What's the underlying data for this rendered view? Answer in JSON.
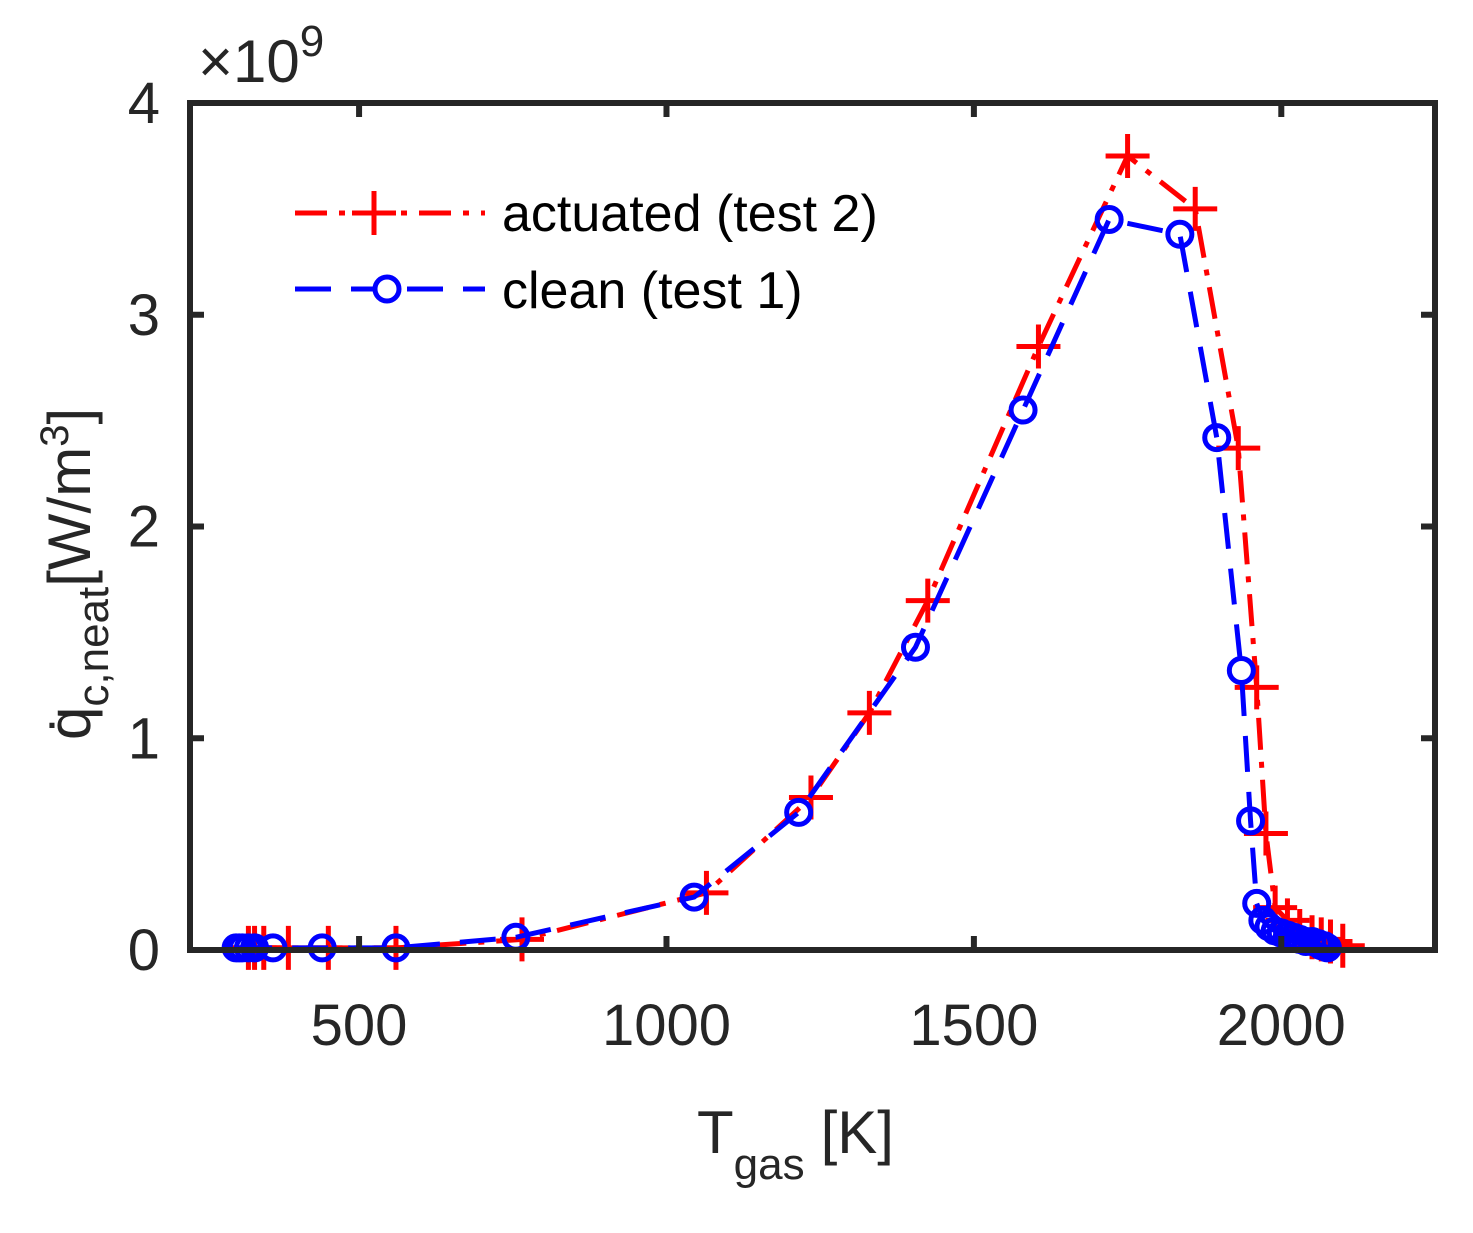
{
  "chart_data": {
    "type": "line",
    "title": "",
    "xlabel": "T",
    "xlabel_sub": "gas",
    "xlabel_unit": "[K]",
    "ylabel": "q̇",
    "ylabel_sub": "c,neat",
    "ylabel_unit": "[W/m",
    "ylabel_unit_sup": "3",
    "ylabel_unit_close": "]",
    "y_exponent": "×10",
    "y_exponent_power": "9",
    "xlim": [
      225,
      2250
    ],
    "ylim": [
      0,
      4
    ],
    "xticks": [
      500,
      1000,
      1500,
      2000
    ],
    "yticks": [
      0,
      1,
      2,
      3,
      4
    ],
    "grid": false,
    "legend_position": "top-left",
    "series": [
      {
        "name": "actuated (test 2)",
        "color": "#ff0000",
        "marker": "plus",
        "dash": "dashdot",
        "x": [
          320,
          330,
          345,
          385,
          450,
          560,
          765,
          1065,
          1235,
          1330,
          1425,
          1605,
          1750,
          1860,
          1930,
          1960,
          1975,
          1990,
          2010,
          2030,
          2050,
          2065,
          2080,
          2100
        ],
        "y": [
          0.01,
          0.01,
          0.01,
          0.01,
          0.01,
          0.01,
          0.05,
          0.27,
          0.72,
          1.12,
          1.65,
          2.85,
          3.75,
          3.5,
          2.37,
          1.24,
          0.55,
          0.2,
          0.14,
          0.09,
          0.06,
          0.05,
          0.04,
          0.02
        ]
      },
      {
        "name": "clean (test 1)",
        "color": "#0000ff",
        "marker": "circle",
        "dash": "dashed",
        "x": [
          300,
          305,
          310,
          320,
          330,
          360,
          440,
          560,
          755,
          1045,
          1215,
          1405,
          1580,
          1720,
          1835,
          1895,
          1935,
          1950,
          1960,
          1970,
          1980,
          1990,
          2000,
          2010,
          2020,
          2030,
          2040,
          2050,
          2060,
          2065,
          2070,
          2075
        ],
        "y": [
          0.01,
          0.01,
          0.01,
          0.01,
          0.01,
          0.01,
          0.01,
          0.01,
          0.06,
          0.25,
          0.65,
          1.43,
          2.55,
          3.45,
          3.38,
          2.42,
          1.32,
          0.61,
          0.22,
          0.14,
          0.11,
          0.09,
          0.08,
          0.07,
          0.06,
          0.05,
          0.04,
          0.04,
          0.03,
          0.02,
          0.02,
          0.01
        ]
      }
    ]
  }
}
